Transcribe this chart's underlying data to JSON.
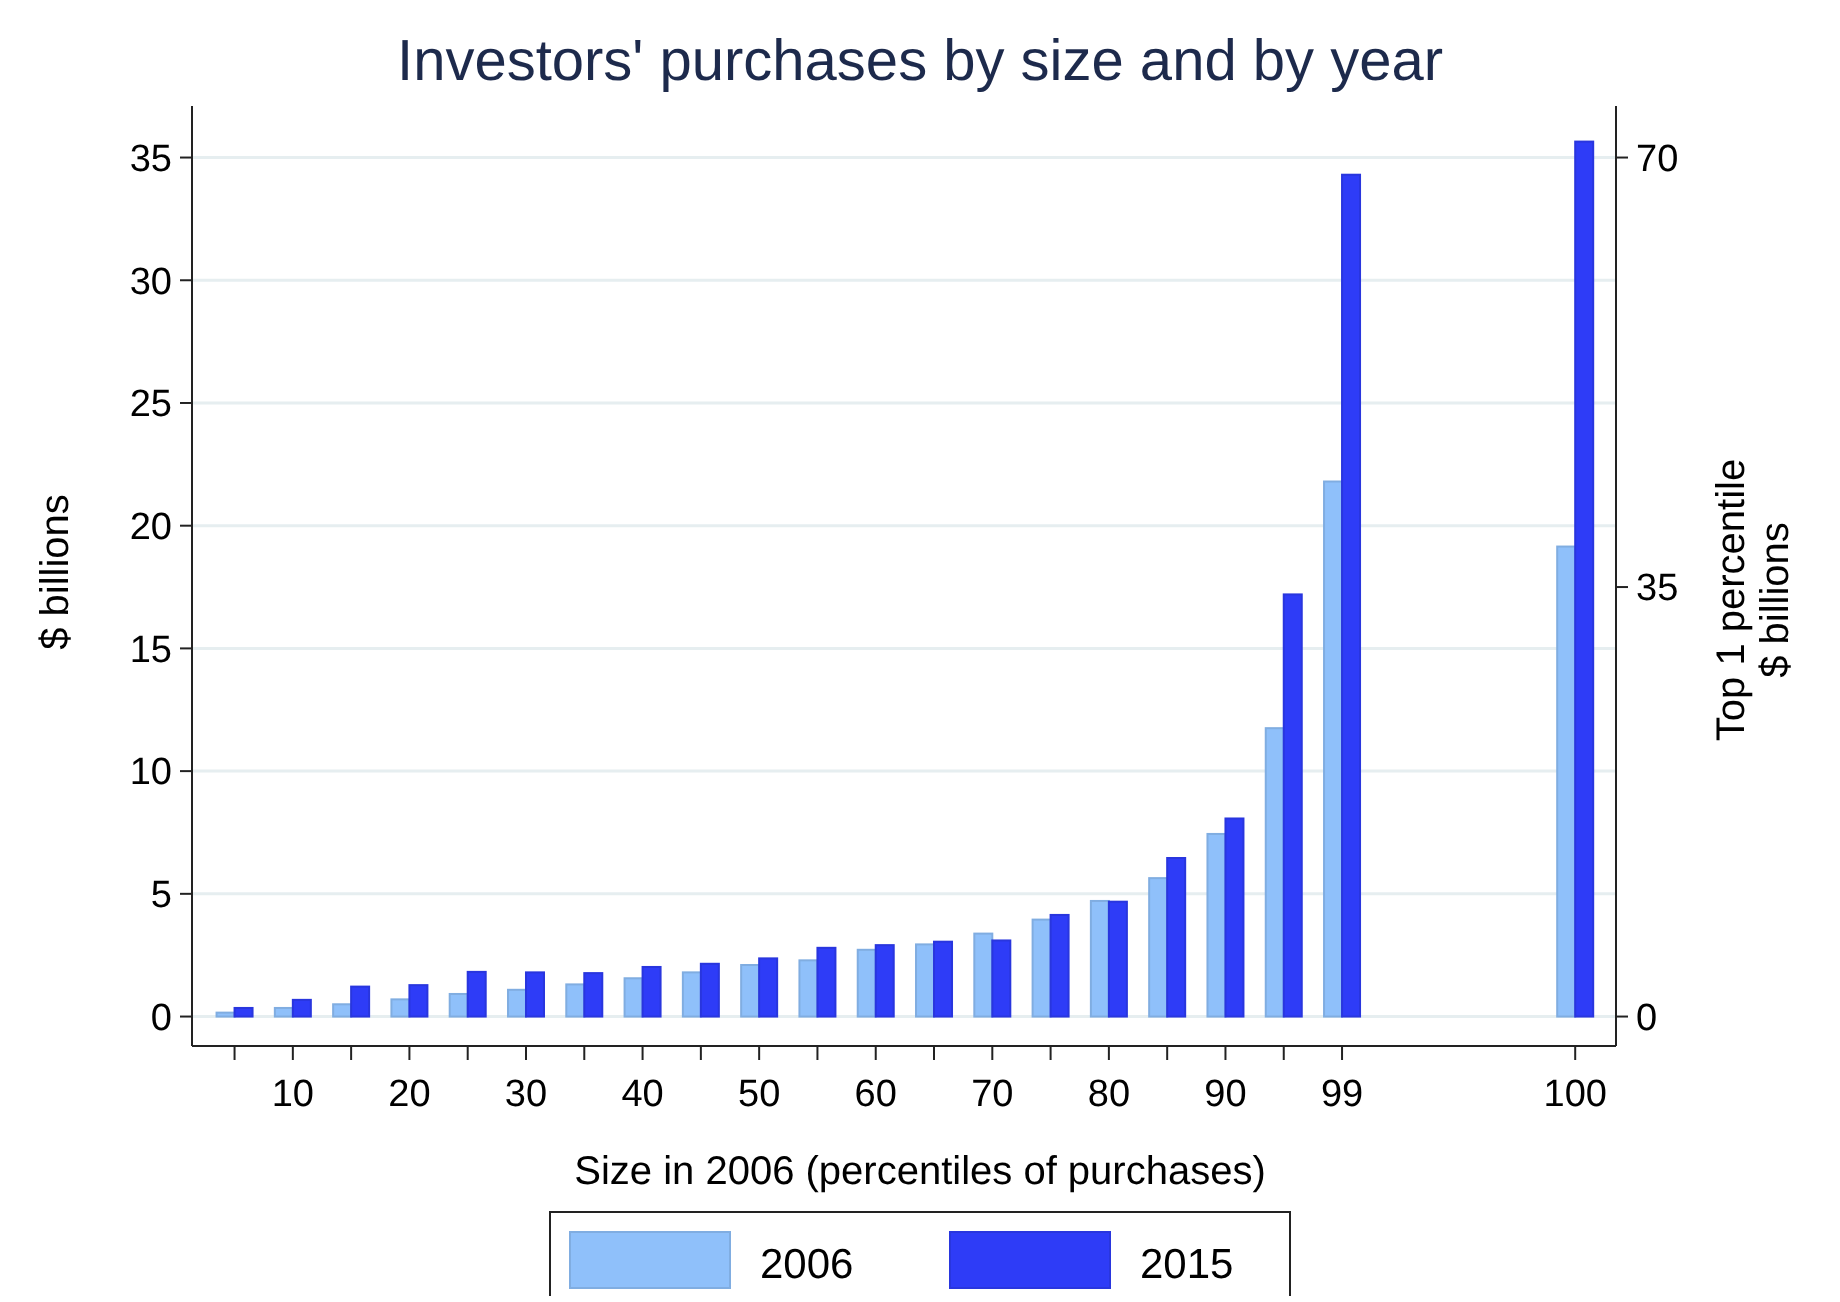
{
  "chart_data": {
    "type": "bar",
    "title": "Investors' purchases by size and by year",
    "xlabel": "Size in 2006 (percentiles of purchases)",
    "ylabel": "$ billions",
    "y2label": "Top 1 percentile\n$ billions",
    "categories": [
      null,
      "10",
      null,
      "20",
      null,
      "30",
      null,
      "40",
      null,
      "50",
      null,
      "60",
      null,
      "70",
      null,
      "80",
      null,
      "90",
      null,
      "99",
      null,
      null,
      null,
      "100"
    ],
    "series": [
      {
        "name": "2006",
        "color": "#8fc0fa",
        "values": [
          0.16,
          0.35,
          0.5,
          0.7,
          0.92,
          1.09,
          1.31,
          1.56,
          1.8,
          2.1,
          2.29,
          2.72,
          2.94,
          3.38,
          3.95,
          4.71,
          5.64,
          7.44,
          11.75,
          21.8,
          null,
          null,
          null,
          null
        ]
      },
      {
        "name": "2015",
        "color": "#2e3cf7",
        "values": [
          0.35,
          0.68,
          1.22,
          1.28,
          1.82,
          1.8,
          1.77,
          2.02,
          2.15,
          2.37,
          2.8,
          2.91,
          3.05,
          3.1,
          4.14,
          4.68,
          6.46,
          8.07,
          17.2,
          34.3,
          null,
          null,
          null,
          null
        ]
      },
      {
        "color": "#8fc0fa",
        "axis": "y2",
        "values": [
          null,
          null,
          null,
          null,
          null,
          null,
          null,
          null,
          null,
          null,
          null,
          null,
          null,
          null,
          null,
          null,
          null,
          null,
          null,
          null,
          null,
          null,
          null,
          38.3
        ]
      },
      {
        "color": "#2e3cf7",
        "axis": "y2",
        "values": [
          null,
          null,
          null,
          null,
          null,
          null,
          null,
          null,
          null,
          null,
          null,
          null,
          null,
          null,
          null,
          null,
          null,
          null,
          null,
          null,
          null,
          null,
          null,
          71.3
        ]
      }
    ],
    "ylim": [
      -1.2,
      37.1
    ],
    "yticks": [
      0,
      5,
      10,
      15,
      20,
      25,
      30,
      35
    ],
    "y2lim": [
      -2.4,
      74.2
    ],
    "y2ticks": [
      0,
      35,
      70
    ],
    "grid": "y",
    "legend": "bottom"
  }
}
